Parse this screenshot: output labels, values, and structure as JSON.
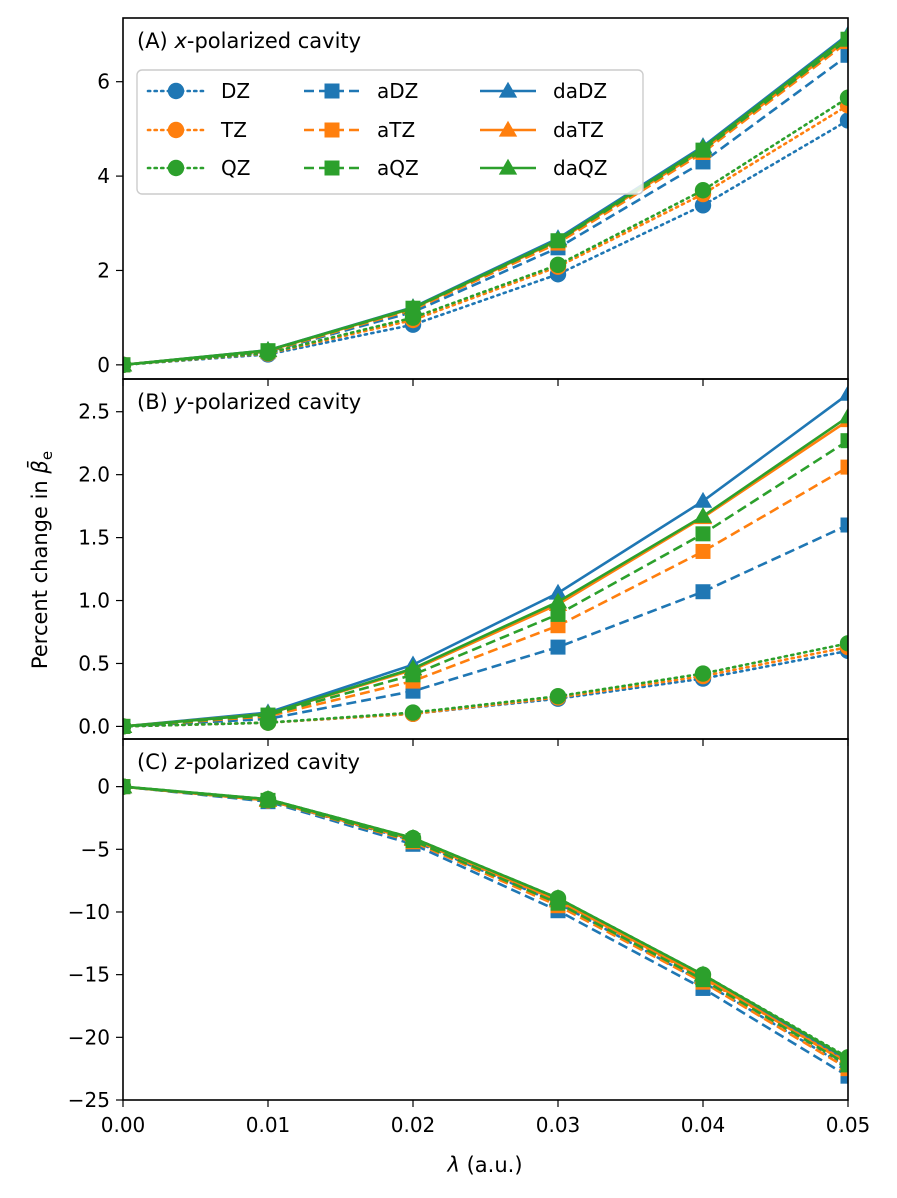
{
  "figure": {
    "ylabel_prefix": "Percent change in ",
    "ylabel_symbol": "β̄",
    "ylabel_sub": "e",
    "xlabel_symbol": "λ",
    "xlabel_unit": " (a.u.)"
  },
  "legend": [
    {
      "name": "DZ",
      "color": "#1f77b4",
      "marker": "circle",
      "dash": "dotted"
    },
    {
      "name": "TZ",
      "color": "#ff7f0e",
      "marker": "circle",
      "dash": "dotted"
    },
    {
      "name": "QZ",
      "color": "#2ca02c",
      "marker": "circle",
      "dash": "dotted"
    },
    {
      "name": "aDZ",
      "color": "#1f77b4",
      "marker": "square",
      "dash": "dashed"
    },
    {
      "name": "aTZ",
      "color": "#ff7f0e",
      "marker": "square",
      "dash": "dashed"
    },
    {
      "name": "aQZ",
      "color": "#2ca02c",
      "marker": "square",
      "dash": "dashed"
    },
    {
      "name": "daDZ",
      "color": "#1f77b4",
      "marker": "triangle",
      "dash": "solid"
    },
    {
      "name": "daTZ",
      "color": "#ff7f0e",
      "marker": "triangle",
      "dash": "solid"
    },
    {
      "name": "daQZ",
      "color": "#2ca02c",
      "marker": "triangle",
      "dash": "solid"
    }
  ],
  "chart_data": [
    {
      "type": "line",
      "panel_label": "(A) ",
      "title_var": "x",
      "title_rest": "-polarized cavity",
      "x": [
        0.0,
        0.01,
        0.02,
        0.03,
        0.04,
        0.05
      ],
      "ylim": [
        -0.3,
        7.35
      ],
      "yticks": [
        0,
        2,
        4,
        6
      ],
      "ytick_labels": [
        "0",
        "2",
        "4",
        "6"
      ],
      "legend_position": "upper-left",
      "series": [
        {
          "name": "DZ",
          "values": [
            0,
            0.22,
            0.85,
            1.92,
            3.38,
            5.18
          ]
        },
        {
          "name": "TZ",
          "values": [
            0,
            0.24,
            0.95,
            2.08,
            3.62,
            5.5
          ]
        },
        {
          "name": "QZ",
          "values": [
            0,
            0.25,
            1.0,
            2.12,
            3.7,
            5.66
          ]
        },
        {
          "name": "aDZ",
          "values": [
            0,
            0.28,
            1.12,
            2.48,
            4.3,
            6.56
          ]
        },
        {
          "name": "aTZ",
          "values": [
            0,
            0.29,
            1.17,
            2.58,
            4.5,
            6.85
          ]
        },
        {
          "name": "aQZ",
          "values": [
            0,
            0.3,
            1.2,
            2.63,
            4.55,
            6.9
          ]
        },
        {
          "name": "daDZ",
          "values": [
            0,
            0.31,
            1.22,
            2.68,
            4.63,
            7.0
          ]
        },
        {
          "name": "daTZ",
          "values": [
            0,
            0.3,
            1.2,
            2.63,
            4.55,
            6.9
          ]
        },
        {
          "name": "daQZ",
          "values": [
            0,
            0.31,
            1.21,
            2.65,
            4.6,
            6.97
          ]
        }
      ]
    },
    {
      "type": "line",
      "panel_label": "(B) ",
      "title_var": "y",
      "title_rest": "-polarized cavity",
      "x": [
        0.0,
        0.01,
        0.02,
        0.03,
        0.04,
        0.05
      ],
      "ylim": [
        -0.1,
        2.76
      ],
      "yticks": [
        0.0,
        0.5,
        1.0,
        1.5,
        2.0,
        2.5
      ],
      "ytick_labels": [
        "0.0",
        "0.5",
        "1.0",
        "1.5",
        "2.0",
        "2.5"
      ],
      "series": [
        {
          "name": "DZ",
          "values": [
            0,
            0.03,
            0.1,
            0.22,
            0.38,
            0.6
          ]
        },
        {
          "name": "TZ",
          "values": [
            0,
            0.03,
            0.1,
            0.23,
            0.4,
            0.63
          ]
        },
        {
          "name": "QZ",
          "values": [
            0,
            0.03,
            0.11,
            0.24,
            0.42,
            0.66
          ]
        },
        {
          "name": "aDZ",
          "values": [
            0,
            0.06,
            0.28,
            0.63,
            1.07,
            1.6
          ]
        },
        {
          "name": "aTZ",
          "values": [
            0,
            0.08,
            0.36,
            0.8,
            1.39,
            2.06
          ]
        },
        {
          "name": "aQZ",
          "values": [
            0,
            0.09,
            0.41,
            0.89,
            1.53,
            2.27
          ]
        },
        {
          "name": "daDZ",
          "values": [
            0,
            0.11,
            0.49,
            1.06,
            1.79,
            2.64
          ]
        },
        {
          "name": "daTZ",
          "values": [
            0,
            0.1,
            0.45,
            0.97,
            1.66,
            2.43
          ]
        },
        {
          "name": "daQZ",
          "values": [
            0,
            0.1,
            0.46,
            0.99,
            1.67,
            2.46
          ]
        }
      ]
    },
    {
      "type": "line",
      "panel_label": "(C) ",
      "title_var": "z",
      "title_rest": "-polarized cavity",
      "x": [
        0.0,
        0.01,
        0.02,
        0.03,
        0.04,
        0.05
      ],
      "ylim": [
        -25.0,
        3.8
      ],
      "yticks": [
        0,
        -5,
        -10,
        -15,
        -20,
        -25
      ],
      "ytick_labels": [
        "0",
        "−5",
        "−10",
        "−15",
        "−20",
        "−25"
      ],
      "xticks": [
        0.0,
        0.01,
        0.02,
        0.03,
        0.04,
        0.05
      ],
      "xtick_labels": [
        "0.00",
        "0.01",
        "0.02",
        "0.03",
        "0.04",
        "0.05"
      ],
      "series": [
        {
          "name": "DZ",
          "values": [
            0,
            -1.1,
            -4.3,
            -9.3,
            -15.6,
            -22.4
          ]
        },
        {
          "name": "TZ",
          "values": [
            0,
            -1.1,
            -4.2,
            -9.1,
            -15.3,
            -22.0
          ]
        },
        {
          "name": "QZ",
          "values": [
            0,
            -1.0,
            -4.1,
            -8.9,
            -15.0,
            -21.6
          ]
        },
        {
          "name": "aDZ",
          "values": [
            0,
            -1.2,
            -4.6,
            -9.9,
            -16.1,
            -23.1
          ]
        },
        {
          "name": "aTZ",
          "values": [
            0,
            -1.1,
            -4.4,
            -9.5,
            -15.6,
            -22.5
          ]
        },
        {
          "name": "aQZ",
          "values": [
            0,
            -1.1,
            -4.3,
            -9.3,
            -15.4,
            -22.2
          ]
        },
        {
          "name": "daDZ",
          "values": [
            0,
            -1.1,
            -4.2,
            -9.0,
            -15.1,
            -21.9
          ]
        },
        {
          "name": "daTZ",
          "values": [
            0,
            -1.1,
            -4.2,
            -9.1,
            -15.2,
            -22.1
          ]
        },
        {
          "name": "daQZ",
          "values": [
            0,
            -1.0,
            -4.1,
            -8.9,
            -15.0,
            -21.7
          ]
        }
      ]
    }
  ]
}
